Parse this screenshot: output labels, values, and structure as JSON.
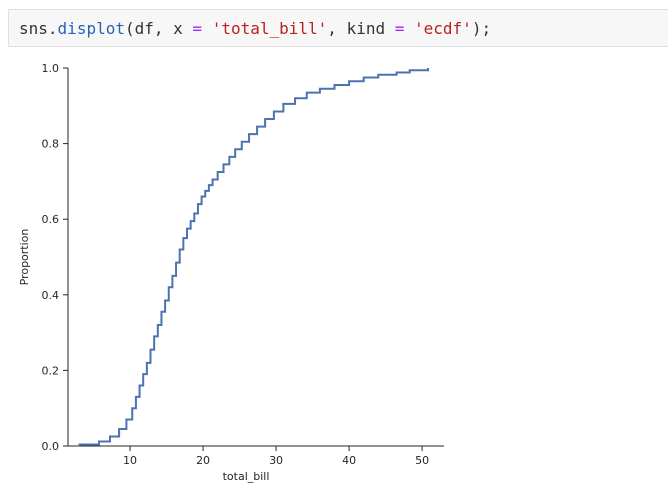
{
  "code_cell": {
    "tokens": [
      {
        "text": "sns",
        "kind": "plain"
      },
      {
        "text": ".",
        "kind": "plain"
      },
      {
        "text": "displot",
        "kind": "fn"
      },
      {
        "text": "(df, x ",
        "kind": "plain"
      },
      {
        "text": "=",
        "kind": "op"
      },
      {
        "text": " ",
        "kind": "plain"
      },
      {
        "text": "'total_bill'",
        "kind": "str"
      },
      {
        "text": ", kind ",
        "kind": "plain"
      },
      {
        "text": "=",
        "kind": "op"
      },
      {
        "text": " ",
        "kind": "plain"
      },
      {
        "text": "'ecdf'",
        "kind": "str"
      },
      {
        "text": ");",
        "kind": "plain"
      }
    ]
  },
  "chart_data": {
    "type": "line",
    "subtype": "ecdf-step",
    "xlabel": "total_bill",
    "ylabel": "Proportion",
    "xlim": [
      1.5,
      53
    ],
    "ylim": [
      0,
      1.0
    ],
    "x_ticks": [
      10,
      20,
      30,
      40,
      50
    ],
    "y_ticks": [
      0.0,
      0.2,
      0.4,
      0.6,
      0.8,
      1.0
    ],
    "y_tick_labels": [
      "0.0",
      "0.2",
      "0.4",
      "0.6",
      "0.8",
      "1.0"
    ],
    "grid": false,
    "legend": "none",
    "line_color": "#4c72b0",
    "series": [
      {
        "x": [
          3.07,
          5.75,
          7.25,
          8.5,
          9.5,
          10.3,
          10.8,
          11.3,
          11.8,
          12.3,
          12.8,
          13.3,
          13.8,
          14.3,
          14.8,
          15.3,
          15.8,
          16.3,
          16.8,
          17.3,
          17.8,
          18.3,
          18.8,
          19.3,
          19.8,
          20.3,
          20.8,
          21.3,
          22.0,
          22.8,
          23.6,
          24.4,
          25.3,
          26.3,
          27.4,
          28.5,
          29.7,
          31.0,
          32.6,
          34.2,
          36.0,
          38.0,
          40.0,
          42.0,
          44.0,
          46.5,
          48.3,
          50.81
        ],
        "y": [
          0.004,
          0.012,
          0.025,
          0.045,
          0.07,
          0.1,
          0.13,
          0.16,
          0.19,
          0.22,
          0.255,
          0.29,
          0.32,
          0.355,
          0.385,
          0.42,
          0.45,
          0.485,
          0.52,
          0.55,
          0.575,
          0.595,
          0.615,
          0.64,
          0.66,
          0.675,
          0.69,
          0.705,
          0.725,
          0.745,
          0.765,
          0.785,
          0.805,
          0.825,
          0.845,
          0.865,
          0.885,
          0.905,
          0.92,
          0.935,
          0.945,
          0.955,
          0.965,
          0.975,
          0.982,
          0.988,
          0.994,
          1.0
        ]
      }
    ]
  }
}
